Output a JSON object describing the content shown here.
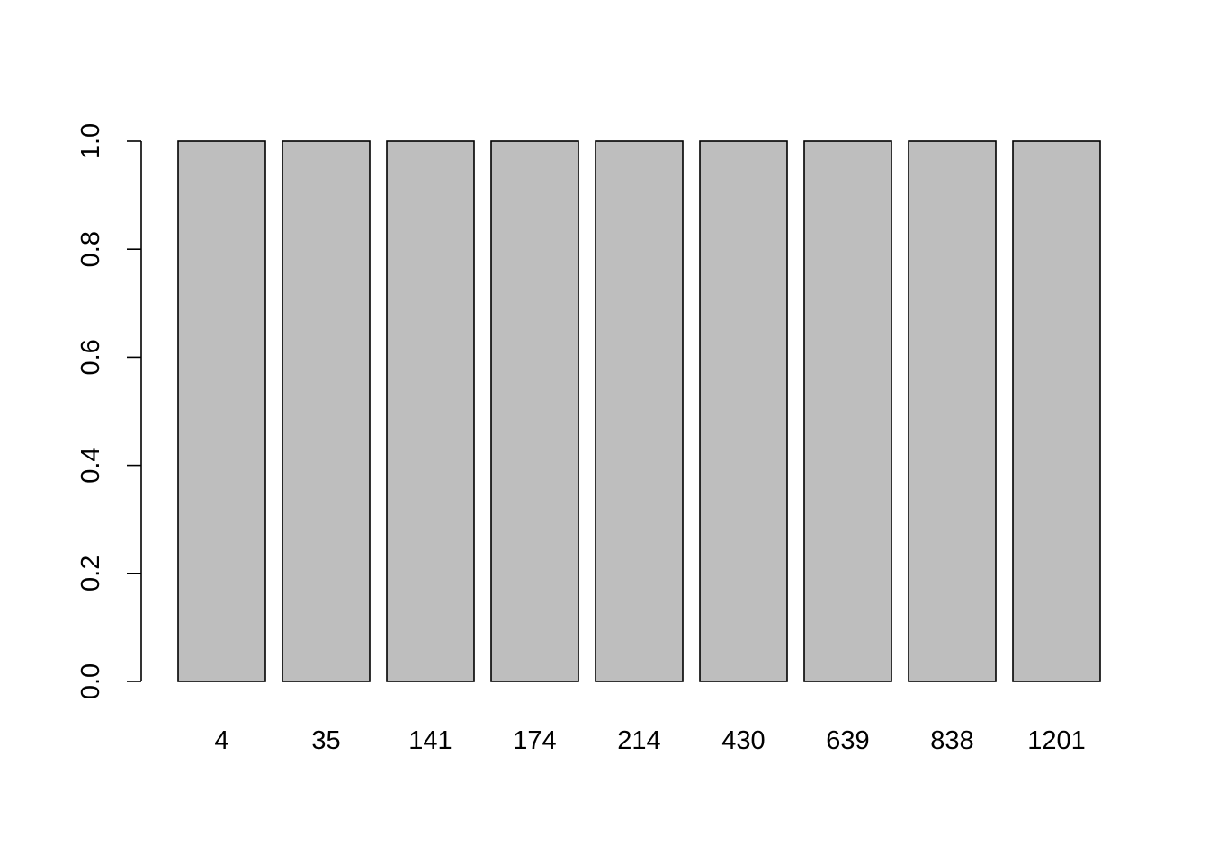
{
  "chart_data": {
    "type": "bar",
    "categories": [
      "4",
      "35",
      "141",
      "174",
      "214",
      "430",
      "639",
      "838",
      "1201"
    ],
    "values": [
      1,
      1,
      1,
      1,
      1,
      1,
      1,
      1,
      1
    ],
    "title": "",
    "xlabel": "",
    "ylabel": "",
    "ylim": [
      0,
      1
    ],
    "yticks": [
      "0.0",
      "0.2",
      "0.4",
      "0.6",
      "0.8",
      "1.0"
    ],
    "bar_color": "#bebebe",
    "bar_border_color": "#000000",
    "grid": false,
    "legend": "none"
  }
}
